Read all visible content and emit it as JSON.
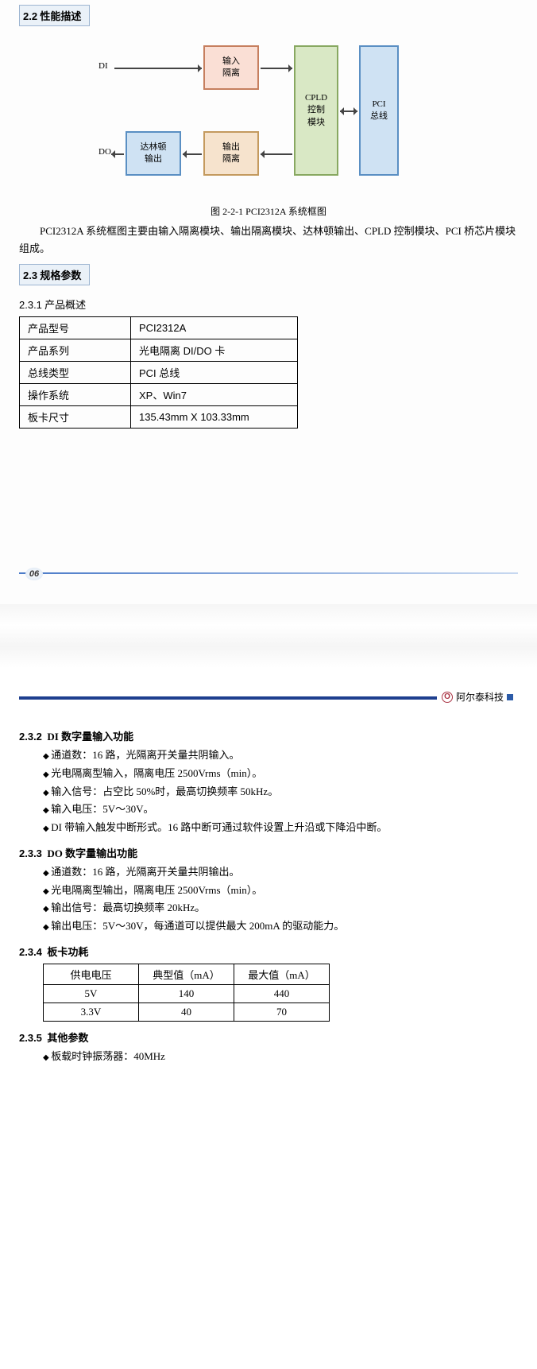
{
  "sec22": {
    "num": "2.2",
    "title": "性能描述"
  },
  "diagram": {
    "di": "DI",
    "do": "DO",
    "input_iso": "输入\n隔离",
    "output_iso": "输出\n隔离",
    "darlington": "达林顿\n输出",
    "cpld": "CPLD\n控制\n模块",
    "pci": "PCI\n总线",
    "caption": "图 2-2-1 PCI2312A 系统框图",
    "colors": {
      "input_iso_bg": "#fadfd5",
      "input_iso_bd": "#c67f5f",
      "output_iso_bg": "#f6e3cd",
      "output_iso_bd": "#c49a5e",
      "darlington_bg": "#cfe2f3",
      "darlington_bd": "#5a8fc3",
      "cpld_bg": "#d9e8c5",
      "cpld_bd": "#88a861",
      "pci_bg": "#cfe2f3",
      "pci_bd": "#5a8fc3"
    }
  },
  "para22": "PCI2312A 系统框图主要由输入隔离模块、输出隔离模块、达林顿输出、CPLD 控制模块、PCI 桥芯片模块组成。",
  "sec23": {
    "num": "2.3",
    "title": "规格参数"
  },
  "s231": {
    "num": "2.3.1",
    "title": "产品概述",
    "rows": [
      [
        "产品型号",
        "PCI2312A"
      ],
      [
        "产品系列",
        "光电隔离 DI/DO 卡"
      ],
      [
        "总线类型",
        "PCI 总线"
      ],
      [
        "操作系统",
        "XP、Win7"
      ],
      [
        "板卡尺寸",
        "135.43mm X 103.33mm"
      ]
    ]
  },
  "page_num": "06",
  "brand": "阿尔泰科技",
  "s232": {
    "num": "2.3.2",
    "title": "DI 数字量输入功能",
    "items": [
      "通道数：16 路，光隔离开关量共阴输入。",
      "光电隔离型输入，隔离电压 2500Vrms（min）。",
      "输入信号：占空比 50%时，最高切换频率 50kHz。",
      "输入电压：5V～30V。",
      "DI 带输入触发中断形式。16 路中断可通过软件设置上升沿或下降沿中断。"
    ]
  },
  "s233": {
    "num": "2.3.3",
    "title": "DO 数字量输出功能",
    "items": [
      "通道数：16 路，光隔离开关量共阴输出。",
      "光电隔离型输出，隔离电压 2500Vrms（min）。",
      "输出信号：最高切换频率 20kHz。",
      "输出电压：5V～30V，每通道可以提供最大 200mA 的驱动能力。"
    ]
  },
  "s234": {
    "num": "2.3.4",
    "title": "板卡功耗",
    "head": [
      "供电电压",
      "典型值（mA）",
      "最大值（mA）"
    ],
    "rows": [
      [
        "5V",
        "140",
        "440"
      ],
      [
        "3.3V",
        "40",
        "70"
      ]
    ]
  },
  "s235": {
    "num": "2.3.5",
    "title": "其他参数",
    "items": [
      "板载时钟振荡器：40MHz"
    ]
  }
}
